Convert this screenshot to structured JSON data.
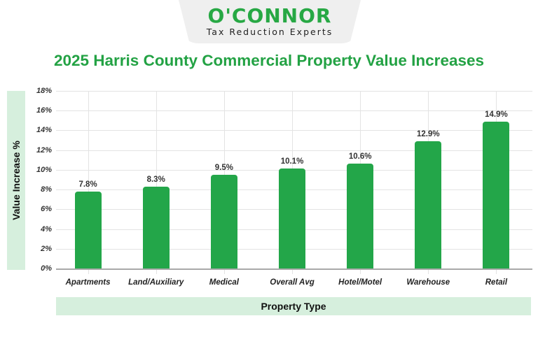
{
  "logo": {
    "name": "O'CONNOR",
    "tagline": "Tax Reduction Experts"
  },
  "colors": {
    "bar": "#23a649",
    "title": "#23a244",
    "label_band": "#d6efdd"
  },
  "chart_data": {
    "type": "bar",
    "title": "2025 Harris County Commercial Property Value Increases",
    "xlabel": "Property Type",
    "ylabel": "Value Increase %",
    "categories": [
      "Apartments",
      "Land/Auxiliary",
      "Medical",
      "Overall Avg",
      "Hotel/Motel",
      "Warehouse",
      "Retail"
    ],
    "values": [
      7.8,
      8.3,
      9.5,
      10.1,
      10.6,
      12.9,
      14.9
    ],
    "value_labels": [
      "7.8%",
      "8.3%",
      "9.5%",
      "10.1%",
      "10.6%",
      "12.9%",
      "14.9%"
    ],
    "ylim": [
      0,
      18
    ],
    "yticks": [
      "0%",
      "2%",
      "4%",
      "6%",
      "8%",
      "10%",
      "12%",
      "14%",
      "16%",
      "18%"
    ],
    "grid": true,
    "legend": "none"
  }
}
